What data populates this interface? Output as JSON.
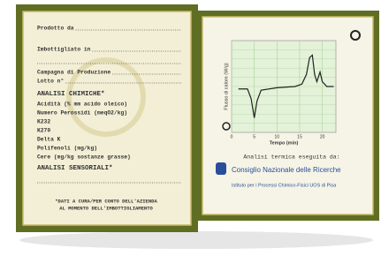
{
  "left": {
    "fields": [
      "Prodotto da",
      "Imbottigliato in",
      "Campagna di Produzione",
      "Lotto n°"
    ],
    "chemical_heading": "ANALISI CHIMICHE*",
    "chemical_items": [
      "Acidità (% mm acido oleico)",
      "Numero Perossidi (meqO2/kg)",
      "K232",
      "K270",
      "Delta K",
      "Polifenoli (mg/kg)",
      "Cere (mg/kg sostanze grasse)"
    ],
    "sensory_heading": "ANALISI SENSORIALI*",
    "footnote": [
      "*DATI A CURA/PER CONTO DELL'AZIENDA",
      "AL MOMENTO DELL'IMBOTTIGLIAMENTO"
    ]
  },
  "right": {
    "chart": {
      "type": "line",
      "x_label": "Tempo (min)",
      "y_label": "Flusso di calore (W/g)",
      "xlim": [
        0,
        23
      ],
      "xticks": [
        0,
        5,
        10,
        15,
        20
      ],
      "ylim": [
        -1.8,
        2
      ],
      "color": "#222222",
      "x": [
        1.5,
        3.5,
        4.3,
        5,
        5.6,
        6.5,
        10,
        14,
        15.5,
        16.5,
        17.2,
        17.8,
        18.3,
        18.8,
        19.5,
        20,
        21,
        22.5
      ],
      "values": [
        0,
        0,
        -0.4,
        -1.2,
        -0.5,
        -0.05,
        0.05,
        0.1,
        0.2,
        0.6,
        1.3,
        1.4,
        0.6,
        0.3,
        0.7,
        0.3,
        0.1,
        0.1
      ]
    },
    "analysis_by": "Analisi termica eseguita da:",
    "institution": "Consiglio Nazionale delle Ricerche",
    "institute": "Istituto per i Processi Chimico-Fisici  UOS di Pisa"
  }
}
